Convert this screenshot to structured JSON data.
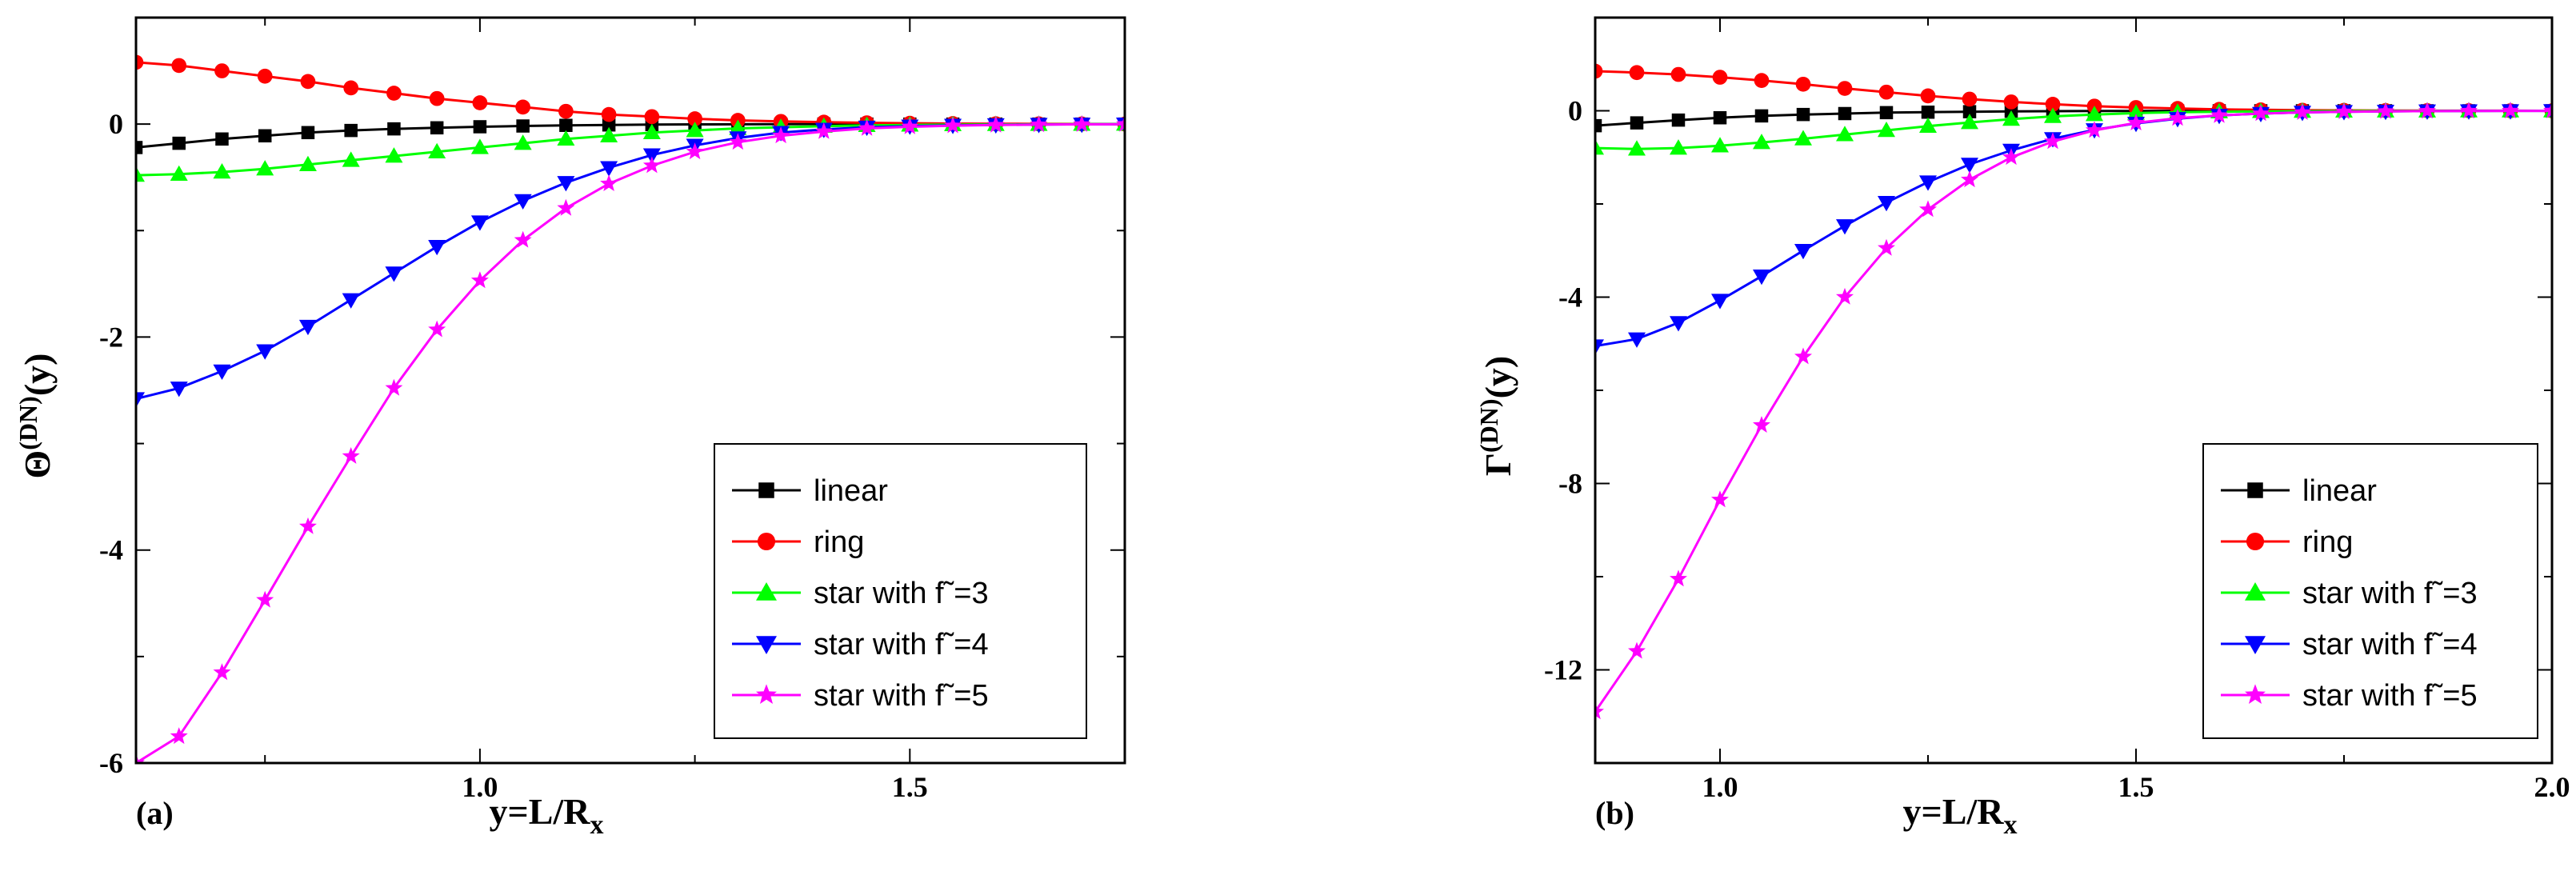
{
  "chart_data": [
    {
      "type": "line",
      "panel_label": "(a)",
      "xlabel_main": "y=L/R",
      "xlabel_sub": "x",
      "ylabel_symbol": "Θ",
      "ylabel_sup": "(DN)",
      "ylabel_tail": "(y)",
      "xlim": [
        0.6,
        1.75
      ],
      "ylim": [
        -6,
        1.0
      ],
      "xticks": [
        1.0,
        1.5
      ],
      "xtick_labels": [
        "1.0",
        "1.5"
      ],
      "yticks": [
        0,
        -2,
        -4,
        -6
      ],
      "ytick_labels": [
        "0",
        "-2",
        "-4",
        "-6"
      ],
      "x": [
        0.6,
        0.65,
        0.7,
        0.75,
        0.8,
        0.85,
        0.9,
        0.95,
        1.0,
        1.05,
        1.1,
        1.15,
        1.2,
        1.25,
        1.3,
        1.35,
        1.4,
        1.45,
        1.5,
        1.55,
        1.6,
        1.65,
        1.7,
        1.75
      ],
      "legend_position": "bottom-right",
      "series": [
        {
          "name": "linear",
          "color": "#000000",
          "marker": "square",
          "values": [
            -0.22,
            -0.18,
            -0.14,
            -0.11,
            -0.08,
            -0.06,
            -0.045,
            -0.035,
            -0.025,
            -0.018,
            -0.012,
            -0.008,
            -0.005,
            -0.003,
            -0.002,
            -0.001,
            0,
            0,
            0,
            0,
            0,
            0,
            0,
            0
          ]
        },
        {
          "name": "ring",
          "color": "#ff0000",
          "marker": "circle",
          "values": [
            0.58,
            0.55,
            0.5,
            0.45,
            0.4,
            0.34,
            0.29,
            0.24,
            0.2,
            0.16,
            0.12,
            0.09,
            0.07,
            0.05,
            0.035,
            0.025,
            0.018,
            0.012,
            0.008,
            0.005,
            0.003,
            0.002,
            0.001,
            0
          ]
        },
        {
          "name": "star with f˜=3",
          "color": "#00ff00",
          "marker": "triangle-up",
          "values": [
            -0.48,
            -0.47,
            -0.45,
            -0.42,
            -0.38,
            -0.34,
            -0.3,
            -0.26,
            -0.22,
            -0.18,
            -0.14,
            -0.11,
            -0.08,
            -0.06,
            -0.04,
            -0.03,
            -0.02,
            -0.012,
            -0.008,
            -0.005,
            -0.003,
            -0.002,
            -0.001,
            0
          ]
        },
        {
          "name": "star with f˜=4",
          "color": "#0000ff",
          "marker": "triangle-down",
          "values": [
            -2.58,
            -2.48,
            -2.32,
            -2.13,
            -1.9,
            -1.65,
            -1.4,
            -1.15,
            -0.92,
            -0.72,
            -0.55,
            -0.41,
            -0.29,
            -0.2,
            -0.13,
            -0.08,
            -0.05,
            -0.03,
            -0.02,
            -0.012,
            -0.007,
            -0.004,
            -0.002,
            -0.001
          ]
        },
        {
          "name": "star with f˜=5",
          "color": "#ff00ff",
          "marker": "star",
          "values": [
            -6.0,
            -5.75,
            -5.15,
            -4.47,
            -3.78,
            -3.12,
            -2.48,
            -1.93,
            -1.47,
            -1.09,
            -0.79,
            -0.56,
            -0.39,
            -0.26,
            -0.17,
            -0.11,
            -0.07,
            -0.04,
            -0.025,
            -0.015,
            -0.009,
            -0.005,
            -0.003,
            -0.001
          ]
        }
      ]
    },
    {
      "type": "line",
      "panel_label": "(b)",
      "xlabel_main": "y=L/R",
      "xlabel_sub": "x",
      "ylabel_symbol": "Γ",
      "ylabel_sup": "(DN)",
      "ylabel_tail": "(y)",
      "xlim": [
        0.85,
        2.0
      ],
      "ylim": [
        -14,
        2.0
      ],
      "xticks": [
        1.0,
        1.5,
        2.0
      ],
      "xtick_labels": [
        "1.0",
        "1.5",
        "2.0"
      ],
      "yticks": [
        0,
        -4,
        -8,
        -12
      ],
      "ytick_labels": [
        "0",
        "-4",
        "-8",
        "-12"
      ],
      "x": [
        0.85,
        0.9,
        0.95,
        1.0,
        1.05,
        1.1,
        1.15,
        1.2,
        1.25,
        1.3,
        1.35,
        1.4,
        1.45,
        1.5,
        1.55,
        1.6,
        1.65,
        1.7,
        1.75,
        1.8,
        1.85,
        1.9,
        1.95,
        2.0
      ],
      "legend_position": "bottom-right",
      "series": [
        {
          "name": "linear",
          "color": "#000000",
          "marker": "square",
          "values": [
            -0.32,
            -0.26,
            -0.2,
            -0.15,
            -0.11,
            -0.08,
            -0.06,
            -0.04,
            -0.03,
            -0.02,
            -0.012,
            -0.008,
            -0.005,
            -0.003,
            -0.002,
            -0.001,
            0,
            0,
            0,
            0,
            0,
            0,
            0,
            0
          ]
        },
        {
          "name": "ring",
          "color": "#ff0000",
          "marker": "circle",
          "values": [
            0.85,
            0.82,
            0.78,
            0.72,
            0.65,
            0.57,
            0.48,
            0.4,
            0.32,
            0.25,
            0.19,
            0.14,
            0.1,
            0.07,
            0.05,
            0.03,
            0.02,
            0.012,
            0.008,
            0.005,
            0.003,
            0.002,
            0.001,
            0
          ]
        },
        {
          "name": "star with f˜=3",
          "color": "#00ff00",
          "marker": "triangle-up",
          "values": [
            -0.8,
            -0.82,
            -0.8,
            -0.75,
            -0.68,
            -0.6,
            -0.51,
            -0.42,
            -0.33,
            -0.25,
            -0.18,
            -0.12,
            -0.08,
            -0.05,
            -0.03,
            -0.02,
            -0.012,
            -0.008,
            -0.005,
            -0.003,
            -0.002,
            -0.001,
            0,
            0
          ]
        },
        {
          "name": "star with f˜=4",
          "color": "#0000ff",
          "marker": "triangle-down",
          "values": [
            -5.05,
            -4.9,
            -4.55,
            -4.07,
            -3.55,
            -3.0,
            -2.47,
            -1.97,
            -1.53,
            -1.15,
            -0.85,
            -0.6,
            -0.41,
            -0.27,
            -0.17,
            -0.1,
            -0.06,
            -0.035,
            -0.02,
            -0.012,
            -0.007,
            -0.004,
            -0.002,
            -0.001
          ]
        },
        {
          "name": "star with f˜=5",
          "color": "#ff00ff",
          "marker": "star",
          "values": [
            -12.9,
            -11.6,
            -10.05,
            -8.35,
            -6.75,
            -5.28,
            -4.0,
            -2.95,
            -2.12,
            -1.48,
            -1.0,
            -0.66,
            -0.42,
            -0.26,
            -0.16,
            -0.1,
            -0.06,
            -0.035,
            -0.02,
            -0.012,
            -0.007,
            -0.004,
            -0.002,
            -0.001
          ]
        }
      ]
    }
  ]
}
